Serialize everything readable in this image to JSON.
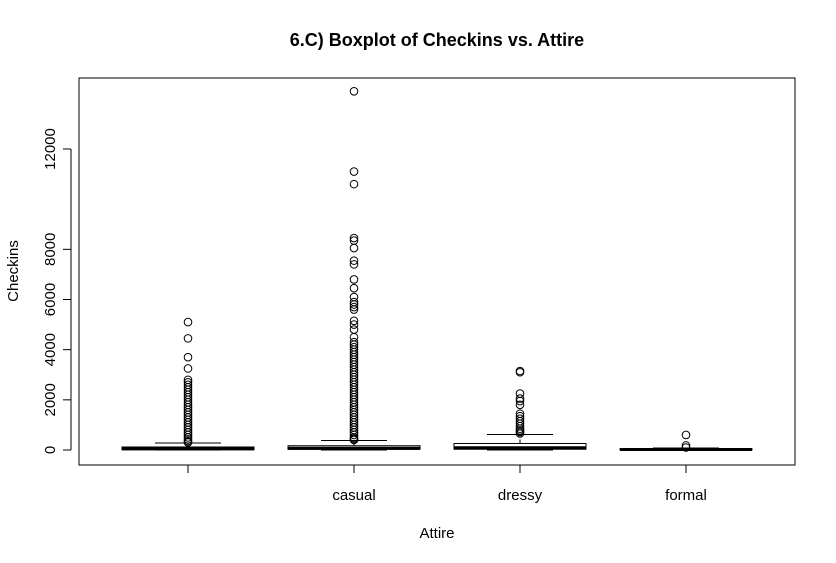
{
  "chart_data": {
    "type": "boxplot",
    "title": "6.C) Boxplot of Checkins vs. Attire",
    "xlabel": "Attire",
    "ylabel": "Checkins",
    "ylim": [
      -500,
      14000
    ],
    "y_ticks": [
      0,
      2000,
      4000,
      6000,
      8000,
      12000
    ],
    "grid": false,
    "legend": "none",
    "categories": [
      "",
      "casual",
      "dressy",
      "formal"
    ],
    "boxes": [
      {
        "category": "",
        "min": 0,
        "q1": 15,
        "median": 45,
        "q3": 120,
        "max": 280,
        "outliers": [
          5100,
          4450,
          3700,
          3250,
          2800,
          2700,
          2600,
          2500,
          2400,
          2300,
          2200,
          2100,
          2000,
          1900,
          1800,
          1700,
          1600,
          1500,
          1400,
          1300,
          1200,
          1100,
          1000,
          900,
          800,
          700,
          600,
          500,
          420,
          350,
          300
        ]
      },
      {
        "category": "casual",
        "min": 0,
        "q1": 25,
        "median": 70,
        "q3": 170,
        "max": 380,
        "outliers": [
          14300,
          11100,
          10600,
          8450,
          8350,
          8050,
          7550,
          7400,
          6800,
          6450,
          6100,
          5900,
          5800,
          5700,
          5600,
          5150,
          5000,
          4800,
          4500,
          4300,
          4200,
          4100,
          4000,
          3900,
          3800,
          3700,
          3600,
          3500,
          3400,
          3300,
          3200,
          3100,
          3000,
          2900,
          2800,
          2700,
          2600,
          2500,
          2400,
          2300,
          2200,
          2100,
          2000,
          1900,
          1800,
          1700,
          1600,
          1500,
          1400,
          1300,
          1200,
          1100,
          1000,
          900,
          800,
          700,
          600,
          500,
          450,
          400
        ]
      },
      {
        "category": "dressy",
        "min": 0,
        "q1": 30,
        "median": 90,
        "q3": 260,
        "max": 620,
        "outliers": [
          3150,
          3100,
          2250,
          2050,
          1950,
          1800,
          1450,
          1350,
          1250,
          1150,
          1050,
          950,
          850,
          780,
          720,
          660
        ]
      },
      {
        "category": "formal",
        "min": 0,
        "q1": 5,
        "median": 20,
        "q3": 45,
        "max": 80,
        "outliers": [
          600,
          180,
          100
        ]
      }
    ]
  }
}
